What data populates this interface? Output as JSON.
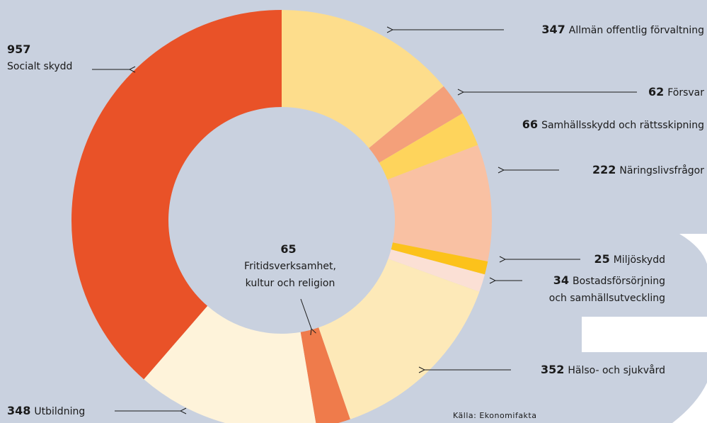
{
  "chart_data": {
    "type": "donut",
    "categories": [
      "Allmän offentlig förvaltning",
      "Försvar",
      "Samhällsskydd och rättsskipning",
      "Näringslivsfrågor",
      "Miljöskydd",
      "Bostadsförsörjning och samhällsutveckling",
      "Hälso- och sjukvård",
      "Fritidsverksamhet, kultur och religion",
      "Utbildning",
      "Socialt skydd"
    ],
    "values": [
      347,
      62,
      66,
      222,
      25,
      34,
      352,
      65,
      348,
      957
    ],
    "colors": [
      "#fddd8c",
      "#f4a07a",
      "#fed45c",
      "#f9c1a3",
      "#fcc21b",
      "#fbe0d5",
      "#fde9b8",
      "#ef7b4b",
      "#fef3da",
      "#e95228"
    ],
    "source": "Källa: Ekonomifakta"
  }
}
